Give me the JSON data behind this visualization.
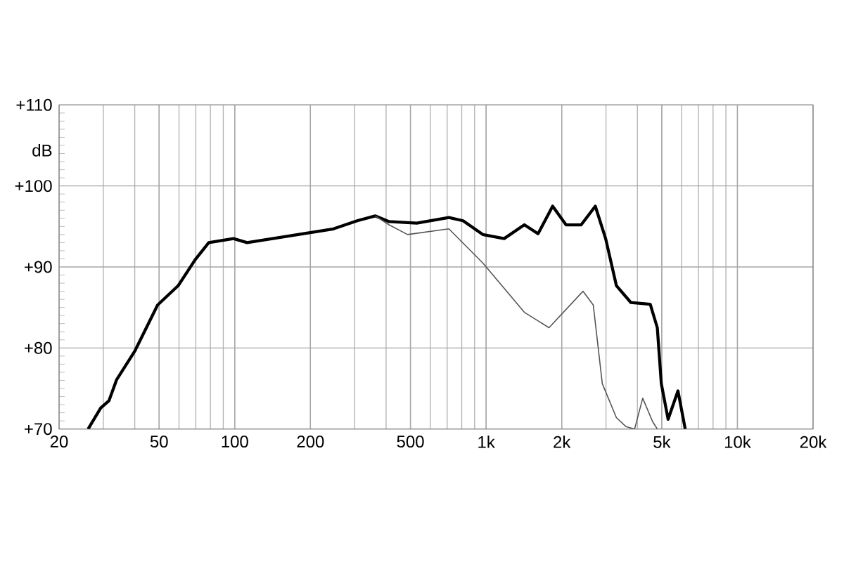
{
  "chart_data": {
    "type": "line",
    "ylabel": "dB",
    "log": "x",
    "series": [
      {
        "color": "#000000",
        "x": [
          26.1,
          29.3,
          31.6,
          33.9,
          40,
          49.3,
          59.6,
          69.6,
          78.8,
          98.8,
          112,
          163,
          247,
          307,
          362,
          411,
          530,
          711,
          810,
          970,
          1180,
          1420,
          1610,
          1840,
          2080,
          2390,
          2720,
          2990,
          3300,
          3770,
          4500,
          4800,
          4980,
          5300,
          5800,
          6200
        ],
        "values": [
          70,
          72.6,
          73.5,
          76.1,
          79.6,
          85.3,
          87.7,
          90.9,
          93,
          93.5,
          93,
          93.8,
          94.7,
          95.7,
          96.3,
          95.6,
          95.4,
          96.1,
          95.7,
          94,
          93.5,
          95.2,
          94.1,
          97.5,
          95.2,
          95.2,
          97.5,
          93.5,
          87.7,
          85.6,
          85.4,
          82.5,
          75.6,
          71.2,
          74.7,
          70
        ]
      },
      {
        "color": "#555555",
        "x": [
          362,
          411,
          487,
          711,
          970,
          1420,
          1780,
          2430,
          2670,
          2900,
          3300,
          3600,
          3900,
          4200,
          4600,
          4800
        ],
        "values": [
          96.3,
          95.2,
          94,
          94.7,
          90.5,
          84.4,
          82.5,
          87,
          85.3,
          75.6,
          71.4,
          70.3,
          70,
          73.8,
          70.9,
          70
        ]
      }
    ],
    "xlim": [
      20,
      20000
    ],
    "ylim": [
      70,
      110
    ],
    "xticks": [
      20,
      50,
      100,
      200,
      500,
      {
        "value": 1000,
        "label": "1k"
      },
      {
        "value": 2000,
        "label": "2k"
      },
      {
        "value": 5000,
        "label": "5k"
      },
      {
        "value": 10000,
        "label": "10k"
      },
      {
        "value": 20000,
        "label": "20k"
      }
    ],
    "yticks": [
      {
        "value": 70,
        "label": "+70"
      },
      {
        "value": 80,
        "label": "+80"
      },
      {
        "value": 90,
        "label": "+90"
      },
      {
        "value": 100,
        "label": "+100"
      },
      {
        "value": 110,
        "label": "+110"
      }
    ],
    "grid": true,
    "marker": "none",
    "line_style": "solid"
  }
}
